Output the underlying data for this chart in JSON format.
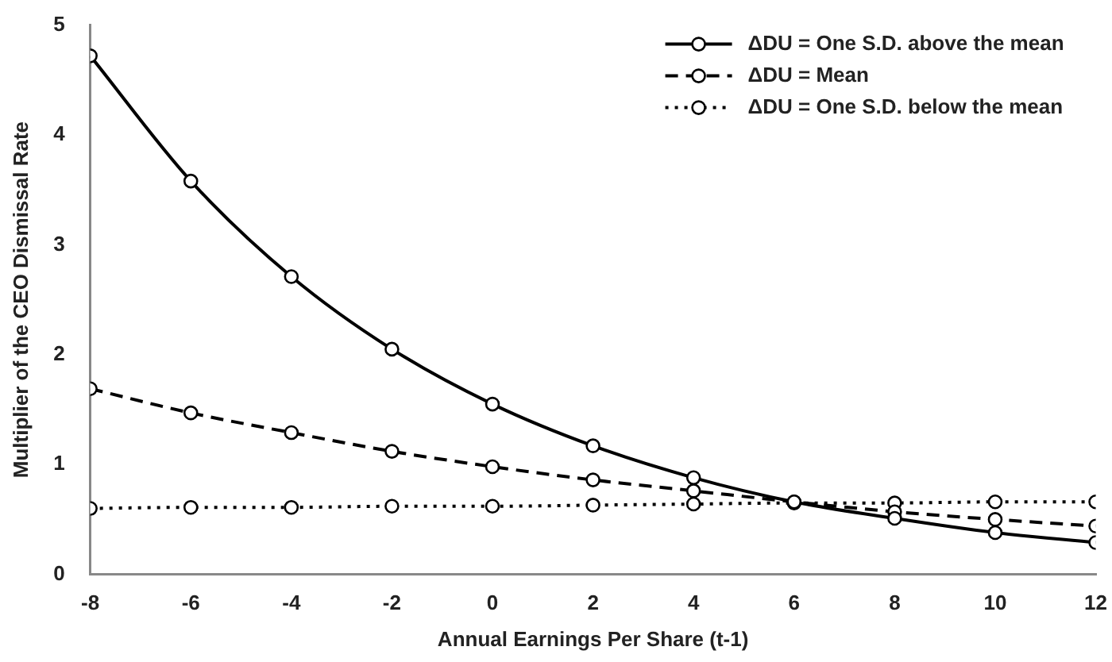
{
  "chart_data": {
    "type": "line",
    "xlabel": "Annual Earnings Per Share (t-1)",
    "ylabel": "Multiplier of the CEO Dismissal Rate",
    "x": [
      -8,
      -6,
      -4,
      -2,
      0,
      2,
      4,
      6,
      8,
      10,
      12
    ],
    "xlim": [
      -8,
      12
    ],
    "xticks": [
      -8,
      -6,
      -4,
      -2,
      0,
      2,
      4,
      6,
      8,
      10,
      12
    ],
    "ylim": [
      0,
      5
    ],
    "yticks": [
      0,
      1,
      2,
      3,
      4,
      5
    ],
    "grid": false,
    "legend": "top right",
    "marker": "circle",
    "series": [
      {
        "name": "ΔDU = One S.D. above the mean",
        "color": "#000000",
        "line_style": "solid",
        "values": [
          4.72,
          3.58,
          2.71,
          2.05,
          1.55,
          1.17,
          0.88,
          0.66,
          0.51,
          0.38,
          0.29
        ]
      },
      {
        "name": "ΔDU = Mean",
        "color": "#000000",
        "line_style": "dashed",
        "values": [
          1.69,
          1.47,
          1.29,
          1.12,
          0.98,
          0.86,
          0.76,
          0.66,
          0.57,
          0.5,
          0.44
        ]
      },
      {
        "name": "ΔDU = One S.D. below the mean",
        "color": "#000000",
        "line_style": "dotted",
        "values": [
          0.6,
          0.61,
          0.61,
          0.62,
          0.62,
          0.63,
          0.64,
          0.65,
          0.65,
          0.66,
          0.66
        ]
      }
    ]
  }
}
